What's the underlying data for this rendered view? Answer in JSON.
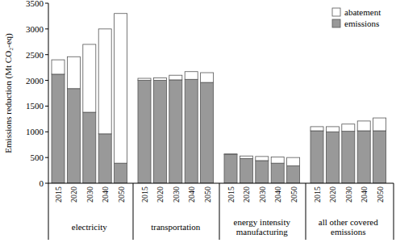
{
  "chart_data": {
    "type": "bar",
    "stacked": true,
    "legend": "upper right",
    "y_label": "Emissions reduction (Mt CO₂-eq)",
    "groups": [
      "electricity",
      "transportation",
      "energy intensity manufacturing",
      "all other covered emissions"
    ],
    "categories": [
      "2015",
      "2020",
      "2030",
      "2040",
      "2050",
      "2015",
      "2020",
      "2030",
      "2040",
      "2050",
      "2015",
      "2020",
      "2030",
      "2040",
      "2050",
      "2015",
      "2020",
      "2030",
      "2040",
      "2050"
    ],
    "series": [
      {
        "name": "emissions",
        "color": "#999999",
        "values": [
          2120,
          1840,
          1380,
          960,
          390,
          2000,
          2000,
          2010,
          2020,
          1960,
          560,
          480,
          440,
          390,
          340,
          1020,
          1000,
          1010,
          1020,
          1020
        ]
      },
      {
        "name": "abatement",
        "color": "#ffffff",
        "values": [
          280,
          620,
          1320,
          2040,
          2910,
          40,
          50,
          90,
          150,
          190,
          10,
          50,
          80,
          120,
          160,
          80,
          100,
          140,
          190,
          250
        ]
      }
    ],
    "ylim": [
      0,
      3500
    ],
    "yticks": [
      0,
      500,
      1000,
      1500,
      2000,
      2500,
      3000,
      3500
    ]
  }
}
